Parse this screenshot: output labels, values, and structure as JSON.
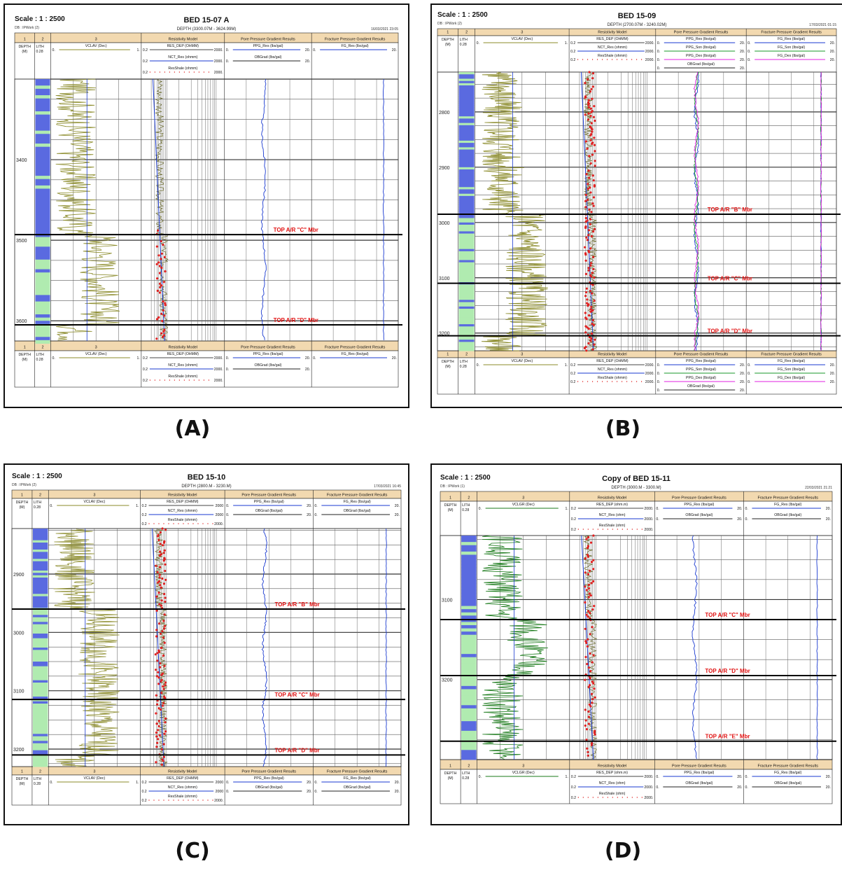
{
  "figure": {
    "panels": [
      {
        "label": "(A)",
        "scale_text": "Scale : 1 : 2500",
        "db_text": "DB : IPWork (2)",
        "title": "BED 15-07 A",
        "depth_text": "DEPTH (3300.07M - 3624.99M)",
        "date_text": "16/03/2021 23:05",
        "track_numbers": [
          "1",
          "2",
          "3",
          "Resistivity Model",
          "Pore Pressure Gradient Results",
          "Fracture Pressure Gradient Results"
        ],
        "depth_header": [
          "DEPTH",
          "(M)"
        ],
        "lith_header": [
          "LITH",
          "0.28"
        ],
        "vcl_curve": {
          "name": "VCLAV (Dec)",
          "min": "0.",
          "max": "1."
        },
        "res_curves": [
          {
            "name": "RES_DEP (OHMM)",
            "min": "0.2",
            "max": "2000."
          },
          {
            "name": "NCT_Res (ohmm)",
            "min": "0.2",
            "max": "2000."
          },
          {
            "name": "ResShale (ohmm)",
            "min": "0.2",
            "max": "2000."
          }
        ],
        "ppg_curves": [
          {
            "name": "PPG_Res (lbs/gal)",
            "min": "0.",
            "max": "20."
          },
          {
            "name": "OBGrad (lbs/gal)",
            "min": "0.",
            "max": "20."
          }
        ],
        "fg_curves": [
          {
            "name": "FG_Res (lbs/gal)",
            "min": "0.",
            "max": "20."
          }
        ],
        "depth_ticks": [
          "3400",
          "3500",
          "3600"
        ],
        "depth_range": [
          3300,
          3625
        ],
        "tops": [
          {
            "label": "TOP A/R \"C\" Mbr",
            "depth": 3493
          },
          {
            "label": "TOP A/R \"D\" Mbr",
            "depth": 3605
          }
        ]
      },
      {
        "label": "(B)",
        "scale_text": "Scale : 1 : 2500",
        "db_text": "DB : IPWork (2)",
        "title": "BED 15-09",
        "depth_text": "DEPTH (2700.07M - 3240.02M)",
        "date_text": "17/03/2021 01:15",
        "track_numbers": [
          "1",
          "2",
          "3",
          "Resistivity Model",
          "Pore Pressure Gradient Results",
          "Fracture Pressure Gradient Results"
        ],
        "depth_header": [
          "DEPTH",
          "(M)"
        ],
        "lith_header": [
          "LITH",
          "0.28"
        ],
        "vcl_curve": {
          "name": "VCLAV (Dec)",
          "min": "0.",
          "max": "1."
        },
        "res_curves": [
          {
            "name": "RES_DEP (OHMM)",
            "min": "0.2",
            "max": "2000."
          },
          {
            "name": "NCT_Res (ohmm)",
            "min": "0.2",
            "max": "2000."
          },
          {
            "name": "ResShale (ohmm)",
            "min": "0.2",
            "max": "2000."
          }
        ],
        "ppg_curves": [
          {
            "name": "PPG_Res (lbs/gal)",
            "min": "0.",
            "max": "20."
          },
          {
            "name": "PPG_Son (lbs/gal)",
            "min": "0.",
            "max": "20."
          },
          {
            "name": "PPG_Dex (lbs/gal)",
            "min": "0.",
            "max": "20."
          },
          {
            "name": "OBGrad (lbs/gal)",
            "min": "0.",
            "max": "20."
          }
        ],
        "fg_curves": [
          {
            "name": "FG_Res (lbs/gal)",
            "min": "0.",
            "max": "20."
          },
          {
            "name": "FG_Son (lbs/gal)",
            "min": "0.",
            "max": "20."
          },
          {
            "name": "FG_Dex (lbs/gal)",
            "min": "0.",
            "max": "20."
          }
        ],
        "depth_ticks": [
          "2800",
          "2900",
          "3000",
          "3100",
          "3200"
        ],
        "depth_range": [
          2728,
          3232
        ],
        "tops": [
          {
            "label": "TOP A/R \"B\" Mbr",
            "depth": 2985
          },
          {
            "label": "TOP A/R \"C\" Mbr",
            "depth": 3110
          },
          {
            "label": "TOP A/R \"D\" Mbr",
            "depth": 3205
          }
        ]
      },
      {
        "label": "(C)",
        "scale_text": "Scale : 1 : 2500",
        "db_text": "DB : IPWork (2)",
        "title": "BED 15-10",
        "depth_text": "DEPTH (2800.M - 3230.M)",
        "date_text": "17/03/2021 16:45",
        "track_numbers": [
          "1",
          "2",
          "3",
          "Resistivity Model",
          "Pore Pressure Gradient Results",
          "Fracture Pressure Gradient Results"
        ],
        "depth_header": [
          "DEPTH",
          "(M)"
        ],
        "lith_header": [
          "LITH",
          "0.28"
        ],
        "vcl_curve": {
          "name": "VCLAV (Dec)",
          "min": "0.",
          "max": "1."
        },
        "res_curves": [
          {
            "name": "RES_DEP (OHMM)",
            "min": "0.2",
            "max": "2000"
          },
          {
            "name": "NCT_Res (ohmm)",
            "min": "0.2",
            "max": "2000"
          },
          {
            "name": "ResShale (ohmm)",
            "min": "0.2",
            "max": "2000."
          }
        ],
        "ppg_curves": [
          {
            "name": "PPG_Res (lbs/gal)",
            "min": "0.",
            "max": "20."
          },
          {
            "name": "OBGrad (lbs/gal)",
            "min": "0.",
            "max": "20."
          }
        ],
        "fg_curves": [
          {
            "name": "FG_Res (lbs/gal)",
            "min": "0.",
            "max": "20."
          },
          {
            "name": "OBGrad (lbs/gal)",
            "min": "0.",
            "max": "20."
          }
        ],
        "depth_ticks": [
          "2900",
          "3000",
          "3100",
          "3200"
        ],
        "depth_range": [
          2822,
          3230
        ],
        "tops": [
          {
            "label": "TOP A/R \"B\" Mbr",
            "depth": 2960
          },
          {
            "label": "TOP A/R \"C\" Mbr",
            "depth": 3115
          },
          {
            "label": "TOP A/R \"D\" Mbr",
            "depth": 3210
          }
        ]
      },
      {
        "label": "(D)",
        "scale_text": "Scale : 1 : 2500",
        "db_text": "DB : IPWork (1)",
        "title": "Copy of BED 15-11",
        "depth_text": "DEPTH (3000.M - 3300.M)",
        "date_text": "22/03/2021 21:21",
        "track_numbers": [
          "1",
          "2",
          "3",
          "Resistivity Model",
          "Pore Pressure Gradient Results",
          "Fracture Pressure Gradient Results"
        ],
        "depth_header": [
          "DEPTH",
          "(M)"
        ],
        "lith_header": [
          "LITH",
          "0.28"
        ],
        "vcl_curve": {
          "name": "VCLGR (Dec)",
          "min": "0.",
          "max": "1."
        },
        "res_curves": [
          {
            "name": "RES_DEP (ohm.m)",
            "min": "0.2",
            "max": "2000."
          },
          {
            "name": "NCT_Res (ohm)",
            "min": "0.2",
            "max": "2000."
          },
          {
            "name": "ResShale (ohm)",
            "min": "0.2",
            "max": "2000."
          }
        ],
        "ppg_curves": [
          {
            "name": "PPG_Res (lbs/gal)",
            "min": "0.",
            "max": "20."
          },
          {
            "name": "OBGrad (lbs/gal)",
            "min": "0.",
            "max": "20."
          }
        ],
        "fg_curves": [
          {
            "name": "FG_Res (lbs/gal)",
            "min": "0.",
            "max": "20."
          },
          {
            "name": "OBGrad (lbs/gal)",
            "min": "0.",
            "max": "20."
          }
        ],
        "depth_ticks": [
          "3100",
          "3200"
        ],
        "depth_range": [
          3020,
          3300
        ],
        "tops": [
          {
            "label": "TOP A/R \"C\" Mbr",
            "depth": 3125
          },
          {
            "label": "TOP A/R \"D\" Mbr",
            "depth": 3195
          },
          {
            "label": "TOP A/R \"E\" Mbr",
            "depth": 3277
          }
        ]
      }
    ]
  },
  "colors": {
    "vcl": "#8b8b2a",
    "vcl_gr": "#1a7a1a",
    "res_dep": "#e02020",
    "nct": "#1a3ad0",
    "ppg_res": "#1a3ad0",
    "ppg_son": "#1a9a2a",
    "ppg_dex": "#e020e0",
    "header_band": "#f2d9b0",
    "lith_sand": "#b0ebb0",
    "lith_shale": "#5a6ae0",
    "top_label": "#e01010"
  },
  "chart_data": [
    {
      "type": "line",
      "title": "BED 15-07 A",
      "depth_range_m": [
        3300,
        3625
      ],
      "tops": [
        {
          "name": "TOP A/R \"C\" Mbr",
          "depth_m": 3493
        },
        {
          "name": "TOP A/R \"D\" Mbr",
          "depth_m": 3605
        }
      ],
      "series": [
        {
          "name": "VCLAV (Dec)",
          "range": [
            0,
            1
          ]
        },
        {
          "name": "RES_DEP (OHMM)",
          "range": [
            0.2,
            2000
          ]
        },
        {
          "name": "PPG_Res (lbs/gal)",
          "range": [
            0,
            20
          ]
        },
        {
          "name": "FG_Res (lbs/gal)",
          "range": [
            0,
            20
          ]
        }
      ]
    },
    {
      "type": "line",
      "title": "BED 15-09",
      "depth_range_m": [
        2700,
        3240
      ],
      "tops": [
        {
          "name": "TOP A/R \"B\" Mbr",
          "depth_m": 2985
        },
        {
          "name": "TOP A/R \"C\" Mbr",
          "depth_m": 3110
        },
        {
          "name": "TOP A/R \"D\" Mbr",
          "depth_m": 3205
        }
      ],
      "series": [
        {
          "name": "VCLAV (Dec)",
          "range": [
            0,
            1
          ]
        },
        {
          "name": "RES_DEP (OHMM)",
          "range": [
            0.2,
            2000
          ]
        },
        {
          "name": "PPG_Res (lbs/gal)",
          "range": [
            0,
            20
          ]
        },
        {
          "name": "PPG_Son (lbs/gal)",
          "range": [
            0,
            20
          ]
        },
        {
          "name": "PPG_Dex (lbs/gal)",
          "range": [
            0,
            20
          ]
        },
        {
          "name": "FG_Res (lbs/gal)",
          "range": [
            0,
            20
          ]
        }
      ]
    },
    {
      "type": "line",
      "title": "BED 15-10",
      "depth_range_m": [
        2800,
        3230
      ],
      "tops": [
        {
          "name": "TOP A/R \"B\" Mbr",
          "depth_m": 2960
        },
        {
          "name": "TOP A/R \"C\" Mbr",
          "depth_m": 3115
        },
        {
          "name": "TOP A/R \"D\" Mbr",
          "depth_m": 3210
        }
      ],
      "series": [
        {
          "name": "VCLAV (Dec)",
          "range": [
            0,
            1
          ]
        },
        {
          "name": "RES_DEP (OHMM)",
          "range": [
            0.2,
            2000
          ]
        },
        {
          "name": "PPG_Res (lbs/gal)",
          "range": [
            0,
            20
          ]
        },
        {
          "name": "FG_Res (lbs/gal)",
          "range": [
            0,
            20
          ]
        }
      ]
    },
    {
      "type": "line",
      "title": "Copy of BED 15-11",
      "depth_range_m": [
        3000,
        3300
      ],
      "tops": [
        {
          "name": "TOP A/R \"C\" Mbr",
          "depth_m": 3125
        },
        {
          "name": "TOP A/R \"D\" Mbr",
          "depth_m": 3195
        },
        {
          "name": "TOP A/R \"E\" Mbr",
          "depth_m": 3277
        }
      ],
      "series": [
        {
          "name": "VCLGR (Dec)",
          "range": [
            0,
            1
          ]
        },
        {
          "name": "RES_DEP (ohm.m)",
          "range": [
            0.2,
            2000
          ]
        },
        {
          "name": "PPG_Res (lbs/gal)",
          "range": [
            0,
            20
          ]
        },
        {
          "name": "FG_Res (lbs/gal)",
          "range": [
            0,
            20
          ]
        }
      ]
    }
  ]
}
